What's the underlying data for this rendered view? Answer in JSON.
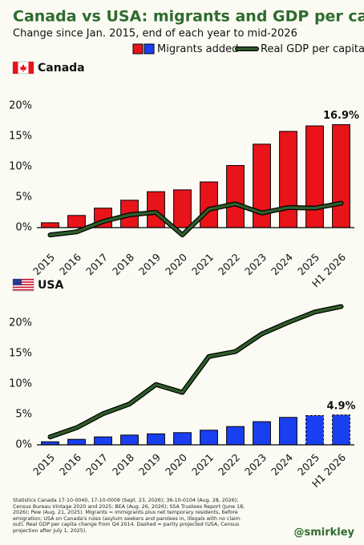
{
  "header": {
    "title": "Canada vs USA: migrants and GDP per capita",
    "subtitle": "Change since Jan. 2015, end of each year to mid-2026"
  },
  "chart_data": [
    {
      "type": "combo",
      "title": "Canada",
      "categories": [
        "2015",
        "2016",
        "2017",
        "2018",
        "2019",
        "2020",
        "2021",
        "2022",
        "2023",
        "2024",
        "2025",
        "H1 2026"
      ],
      "ylim": [
        -2,
        21
      ],
      "yticks": [
        {
          "value": 0,
          "label": "0%"
        },
        {
          "value": 5,
          "label": "5%"
        },
        {
          "value": 10,
          "label": "10%"
        },
        {
          "value": 15,
          "label": "15%"
        },
        {
          "value": 20,
          "label": "20%"
        }
      ],
      "series": [
        {
          "name": "Migrants added",
          "type": "bar",
          "color": "#e8141a",
          "values": [
            0.8,
            2.0,
            3.2,
            4.5,
            5.9,
            6.2,
            7.5,
            10.2,
            13.7,
            15.8,
            16.7,
            16.9
          ],
          "value_labels": [
            null,
            null,
            null,
            null,
            null,
            null,
            null,
            null,
            null,
            null,
            null,
            "16.9%"
          ]
        },
        {
          "name": "Real GDP per capita",
          "type": "line",
          "color": "#2f5d2a",
          "values": [
            -1.2,
            -0.7,
            1.0,
            2.1,
            2.5,
            -1.2,
            3.0,
            3.9,
            2.4,
            3.3,
            3.2,
            4.0
          ]
        }
      ]
    },
    {
      "type": "combo",
      "title": "USA",
      "categories": [
        "2015",
        "2016",
        "2017",
        "2018",
        "2019",
        "2020",
        "2021",
        "2022",
        "2023",
        "2024",
        "2025",
        "H1 2026"
      ],
      "ylim": [
        0,
        24
      ],
      "yticks": [
        {
          "value": 0,
          "label": "0%"
        },
        {
          "value": 5,
          "label": "5%"
        },
        {
          "value": 10,
          "label": "10%"
        },
        {
          "value": 15,
          "label": "15%"
        },
        {
          "value": 20,
          "label": "20%"
        }
      ],
      "series": [
        {
          "name": "Migrants added",
          "type": "bar",
          "color": "#1a3ff0",
          "values": [
            0.5,
            0.9,
            1.3,
            1.6,
            1.8,
            2.0,
            2.4,
            3.0,
            3.8,
            4.5,
            4.8,
            4.9
          ],
          "value_labels": [
            null,
            null,
            null,
            null,
            null,
            null,
            null,
            null,
            null,
            null,
            null,
            "4.9%"
          ],
          "dashed": [
            false,
            false,
            false,
            false,
            false,
            false,
            false,
            false,
            false,
            false,
            true,
            true
          ]
        },
        {
          "name": "Real GDP per capita",
          "type": "line",
          "color": "#2f5d2a",
          "values": [
            1.3,
            2.8,
            5.1,
            6.7,
            9.9,
            8.6,
            14.5,
            15.3,
            18.2,
            20.1,
            21.8,
            22.7
          ]
        }
      ]
    }
  ],
  "footer": {
    "note": "Statistics Canada 17-10-0040, 17-10-0009 (Sept. 23, 2026); 36-10-0104 (Aug. 28, 2026); Census Bureau Vintage 2020 and 2025; BEA (Aug. 26, 2026); SSA Trustees Report (June 18, 2026); Pew (Aug. 21, 2025). Migrants = immigrants plus net temporary residents, before emigration; USA on Canada's rules (asylum seekers and parolees in, illegals with no claim out). Real GDP per capita change from Q4 2014. Dashed = partly projected (USA, Census projection after July 1, 2025).",
    "handle": "@smirkley"
  }
}
